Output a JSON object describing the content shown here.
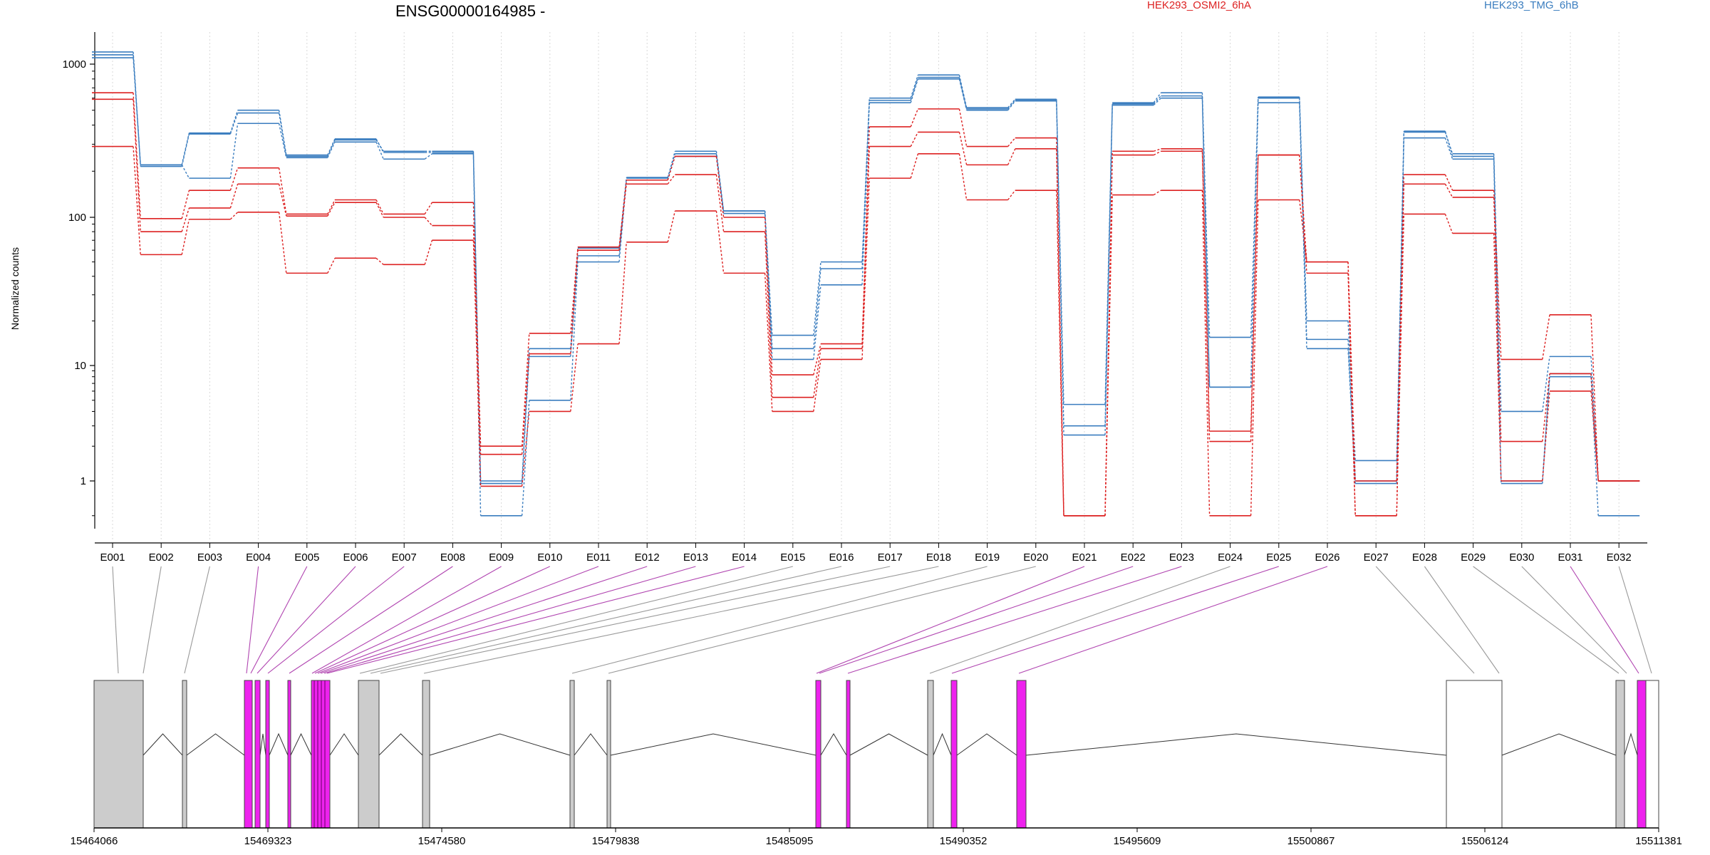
{
  "chart_data": [
    {
      "type": "line",
      "title": "ENSG00000164985 -",
      "ylabel": "Normalized counts",
      "yscale": "log",
      "ylim": [
        0.5,
        1500
      ],
      "yticks": [
        "1",
        "10",
        "100",
        "1000"
      ],
      "grid": "vertical dotted lines at each exon",
      "legend_placement": "top",
      "categories": [
        "E001",
        "E002",
        "E003",
        "E004",
        "E005",
        "E006",
        "E007",
        "E008",
        "E009",
        "E010",
        "E011",
        "E012",
        "E013",
        "E014",
        "E015",
        "E016",
        "E017",
        "E018",
        "E019",
        "E020",
        "E021",
        "E022",
        "E023",
        "E024",
        "E025",
        "E026",
        "E027",
        "E028",
        "E029",
        "E030",
        "E031",
        "E032"
      ],
      "legend": [
        {
          "name": "HEK293_OSMI2_6hA",
          "color": "#dd2222"
        },
        {
          "name": "HEK293_TMG_6hB",
          "color": "#3a7dbf"
        }
      ],
      "series": [
        {
          "group": "HEK293_TMG_6hB",
          "color": "#3a7dbf",
          "values": [
            1200,
            215,
            350,
            480,
            250,
            320,
            270,
            270,
            1.0,
            11.5,
            55,
            180,
            270,
            110,
            16,
            50,
            600,
            850,
            520,
            590,
            4.6,
            560,
            650,
            15.5,
            610,
            20,
            1.5,
            360,
            260,
            4.0,
            11.5,
            1.0
          ]
        },
        {
          "group": "HEK293_TMG_6hB",
          "color": "#3a7dbf",
          "values": [
            1150,
            220,
            355,
            500,
            255,
            325,
            265,
            265,
            0.95,
            13,
            62,
            182,
            260,
            106,
            13,
            45,
            580,
            820,
            510,
            580,
            3.0,
            550,
            620,
            6.5,
            600,
            15,
            1.0,
            365,
            250,
            1.0,
            8.5,
            1.0
          ]
        },
        {
          "group": "HEK293_TMG_6hB",
          "color": "#3a7dbf",
          "values": [
            1100,
            220,
            180,
            410,
            245,
            310,
            240,
            260,
            0.5,
            5.0,
            50,
            175,
            250,
            110,
            11,
            35,
            560,
            800,
            500,
            575,
            2.5,
            540,
            600,
            6.5,
            560,
            13,
            0.95,
            330,
            240,
            0.95,
            8.0,
            0.5
          ]
        },
        {
          "group": "HEK293_OSMI2_6hA",
          "color": "#dd2222",
          "values": [
            650,
            98,
            150,
            210,
            105,
            130,
            105,
            125,
            2.0,
            16.5,
            63,
            175,
            250,
            100,
            8.3,
            14,
            390,
            510,
            290,
            330,
            0.5,
            270,
            280,
            2.7,
            255,
            50,
            1.0,
            190,
            150,
            11,
            22,
            1.0
          ]
        },
        {
          "group": "HEK293_OSMI2_6hA",
          "color": "#dd2222",
          "values": [
            590,
            80,
            115,
            165,
            102,
            125,
            100,
            88,
            1.7,
            12,
            60,
            165,
            190,
            80,
            5.3,
            13,
            290,
            360,
            220,
            280,
            0.5,
            255,
            270,
            2.2,
            255,
            42,
            0.5,
            165,
            135,
            2.2,
            8.5,
            1.0
          ]
        },
        {
          "group": "HEK293_OSMI2_6hA",
          "color": "#dd2222",
          "values": [
            290,
            56,
            97,
            108,
            42,
            53,
            48,
            70,
            0.9,
            4.0,
            14,
            68,
            110,
            42,
            4.0,
            11,
            180,
            260,
            130,
            150,
            0.5,
            140,
            150,
            0.5,
            130,
            50,
            0.5,
            105,
            78,
            1.0,
            6.0,
            1.0
          ]
        }
      ]
    },
    {
      "type": "gene_model",
      "xlabel": "",
      "xticks": [
        "15464066",
        "15469323",
        "15474580",
        "15479838",
        "15485095",
        "15490352",
        "15495609",
        "15500867",
        "15506124",
        "15511381"
      ]
    }
  ]
}
